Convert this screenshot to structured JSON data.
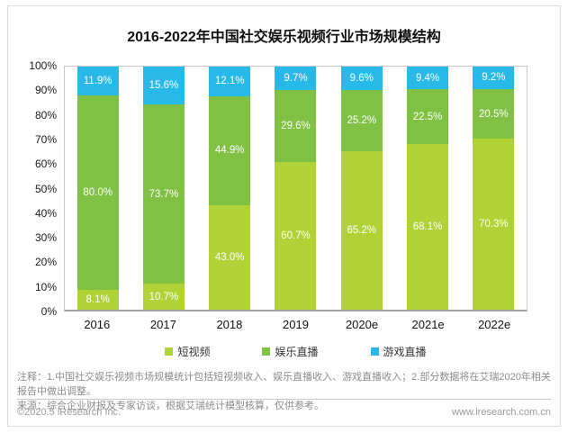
{
  "chart_data": {
    "type": "bar",
    "stacked": true,
    "title": "2016-2022年中国社交娱乐视频行业市场规模结构",
    "unit": "%",
    "categories": [
      "2016",
      "2017",
      "2018",
      "2019",
      "2020e",
      "2021e",
      "2022e"
    ],
    "series": [
      {
        "name": "短视频",
        "color": "#b1d237",
        "values": [
          8.1,
          10.7,
          43.0,
          60.7,
          65.2,
          68.1,
          70.3
        ]
      },
      {
        "name": "娱乐直播",
        "color": "#80c144",
        "values": [
          80.0,
          73.7,
          44.9,
          29.6,
          25.2,
          22.5,
          20.5
        ]
      },
      {
        "name": "游戏直播",
        "color": "#29b9e8",
        "values": [
          11.9,
          15.6,
          12.1,
          9.7,
          9.6,
          9.4,
          9.2
        ]
      }
    ],
    "y_ticks": [
      "0%",
      "10%",
      "20%",
      "30%",
      "40%",
      "50%",
      "60%",
      "70%",
      "80%",
      "90%",
      "100%"
    ],
    "ylim": [
      0,
      100
    ],
    "grid": false,
    "legend_position": "bottom",
    "value_label_color": "#ffffff"
  },
  "notes": {
    "line1": "注释：1.中国社交娱乐视频市场规模统计包括短视频收入、娱乐直播收入、游戏直播收入；2.部分数据将在艾瑞2020年相关报告中做出调整。",
    "line2": "来源：综合企业财报及专家访谈，根据艾瑞统计模型核算，仅供参考。"
  },
  "footer": {
    "copyright": "©2020.5 iResearch Inc.",
    "website": "www.iresearch.com.cn"
  }
}
